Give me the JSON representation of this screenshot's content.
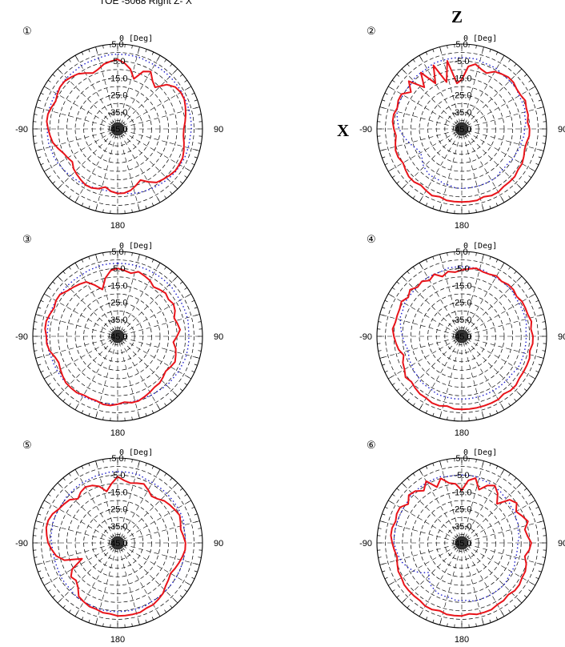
{
  "header": {
    "title": "TOE -5068 Right Z- X",
    "axis_z": "Z",
    "axis_x": "X"
  },
  "chart_data": {
    "type": "polar-line",
    "unit_angle": "[Deg]",
    "angle_labels": {
      "top": "0",
      "right": "90",
      "bottom": "180",
      "left": "-90"
    },
    "radial_ticks": [
      "5.0",
      "-5.0",
      "-15.0",
      "-25.0",
      "-35.0",
      "-45.0"
    ],
    "rlim": [
      -45,
      5
    ],
    "colors": {
      "series_red": "#e8141a",
      "series_blue": "#1c1ccc",
      "grid": "#000000"
    },
    "plots": [
      {
        "marker": "①",
        "series": [
          {
            "style": "solid-red",
            "values": [
              -4,
              -6,
              -9,
              -14,
              -8,
              -6,
              -10,
              -12,
              -6,
              -3,
              -2,
              -2,
              -3,
              -4,
              -5,
              -6,
              -6,
              -5,
              -4,
              -3,
              -3,
              -3,
              -4,
              -5,
              -6,
              -9,
              -12,
              -10,
              -8,
              -7,
              -7,
              -8,
              -10,
              -8,
              -7,
              -7,
              -8,
              -9,
              -10,
              -12,
              -11,
              -10,
              -8,
              -6,
              -5,
              -4,
              -3,
              -3,
              -4,
              -5,
              -4,
              -3,
              -3,
              -4,
              -5,
              -7,
              -9,
              -8,
              -6,
              -5
            ]
          },
          {
            "style": "dotted-blue",
            "values": [
              -1,
              -1,
              -1,
              -1,
              -1.5,
              -1.5,
              -1.5,
              -1.5,
              -1.5,
              -1.5,
              -1.5,
              -1.5,
              -1.5,
              -1.5,
              -1.5,
              -1.5,
              -2,
              -2,
              -2,
              -2,
              -2.5,
              -2.5,
              -3,
              -3.5,
              -4,
              -4.5,
              -5,
              -5.5,
              -6,
              -7,
              -7.5,
              -8,
              -8,
              -8,
              -7.5,
              -7,
              -6.5,
              -6,
              -5.5,
              -5,
              -4.5,
              -4,
              -4,
              -3.5,
              -3.5,
              -3.5,
              -3,
              -3,
              -3,
              -3,
              -3,
              -3,
              -2.5,
              -2.5,
              -2.5,
              -2,
              -2,
              -2,
              -1.5,
              -1
            ]
          }
        ]
      },
      {
        "marker": "②",
        "series": [
          {
            "style": "solid-red",
            "values": [
              -16,
              -8,
              -6,
              -8,
              -9,
              -6,
              -5,
              -4,
              -4,
              -5,
              -5,
              -4,
              -5,
              -5,
              -6,
              -5,
              -5,
              -6,
              -6,
              -5,
              -4,
              -4,
              -3,
              -3,
              -3,
              -2,
              -2,
              -3,
              -2,
              -2,
              -2,
              -2,
              -2,
              -3,
              -2,
              -3,
              -4,
              -3,
              -3,
              -4,
              -5,
              -4,
              -4,
              -5,
              -6,
              -5,
              -4,
              -4,
              -5,
              -4,
              -4,
              -8,
              -3,
              -12,
              -4,
              -14,
              -4,
              -16,
              -4,
              -18
            ]
          },
          {
            "style": "dotted-blue",
            "values": [
              -3,
              -3,
              -3,
              -4,
              -4,
              -4,
              -5,
              -5,
              -5,
              -5,
              -6,
              -6,
              -6,
              -7,
              -7,
              -8,
              -8,
              -9,
              -9,
              -10,
              -10,
              -11,
              -11,
              -11,
              -10,
              -10,
              -10,
              -10,
              -10,
              -10,
              -10,
              -10,
              -11,
              -11,
              -12,
              -12,
              -12,
              -13,
              -14,
              -16,
              -17,
              -16,
              -14,
              -12,
              -10,
              -8,
              -7,
              -6,
              -5,
              -5,
              -5,
              -5,
              -5,
              -4,
              -4,
              -4,
              -3,
              -3,
              -3,
              -3
            ]
          }
        ]
      },
      {
        "marker": "③",
        "series": [
          {
            "style": "solid-red",
            "values": [
              -5,
              -6,
              -7,
              -5,
              -6,
              -7,
              -9,
              -8,
              -7,
              -8,
              -7,
              -8,
              -10,
              -9,
              -8,
              -10,
              -12,
              -10,
              -9,
              -8,
              -9,
              -10,
              -9,
              -8,
              -8,
              -7,
              -6,
              -5,
              -5,
              -6,
              -5,
              -4,
              -4,
              -5,
              -5,
              -5,
              -4,
              -4,
              -4,
              -5,
              -6,
              -7,
              -6,
              -4,
              -3,
              -3,
              -2,
              -2,
              -3,
              -4,
              -3,
              -3,
              -5,
              -6,
              -7,
              -8,
              -12,
              -16,
              -10,
              -6
            ]
          },
          {
            "style": "dotted-blue",
            "values": [
              -2,
              -2,
              -2,
              -2,
              -2,
              -2,
              -2,
              -2,
              -2,
              -2.5,
              -2.5,
              -2.5,
              -2.5,
              -2.5,
              -3,
              -3,
              -3,
              -3,
              -3,
              -3.5,
              -3.5,
              -4,
              -4,
              -4.5,
              -5,
              -5,
              -5.5,
              -5.5,
              -5.5,
              -5.5,
              -5,
              -5,
              -4.5,
              -4.5,
              -4.5,
              -4,
              -4,
              -4,
              -4,
              -4,
              -4,
              -4,
              -4,
              -3.5,
              -3.5,
              -3.5,
              -3.5,
              -3.5,
              -3,
              -3,
              -3,
              -3,
              -3,
              -3,
              -3,
              -3,
              -2.5,
              -2.5,
              -2,
              -2
            ]
          }
        ]
      },
      {
        "marker": "④",
        "series": [
          {
            "style": "solid-red",
            "values": [
              -6,
              -5,
              -4,
              -5,
              -5,
              -4,
              -5,
              -4,
              -4,
              -5,
              -4,
              -4,
              -4,
              -3,
              -4,
              -3,
              -3,
              -4,
              -3,
              -3,
              -3,
              -3,
              -2,
              -2,
              -3,
              -2,
              -2,
              -2,
              -2,
              -2,
              -2,
              -2,
              -3,
              -2,
              -2,
              -3,
              -3,
              -4,
              -5,
              -4,
              -6,
              -7,
              -9,
              -7,
              -6,
              -5,
              -4,
              -5,
              -5,
              -5,
              -4,
              -6,
              -4,
              -6,
              -5,
              -7,
              -5,
              -8,
              -6,
              -7
            ]
          },
          {
            "style": "dotted-blue",
            "values": [
              -4,
              -4,
              -4,
              -4,
              -5,
              -5,
              -5,
              -5,
              -5,
              -6,
              -6,
              -6,
              -6,
              -6,
              -7,
              -7,
              -7,
              -7,
              -7,
              -7,
              -7,
              -8,
              -8,
              -8,
              -8,
              -8,
              -8,
              -8,
              -8,
              -8,
              -8,
              -8,
              -8,
              -8,
              -8,
              -9,
              -9,
              -9,
              -10,
              -10,
              -11,
              -11,
              -12,
              -12,
              -11,
              -10,
              -9,
              -8,
              -7,
              -7,
              -6,
              -6,
              -6,
              -6,
              -5,
              -5,
              -5,
              -5,
              -4,
              -4
            ]
          }
        ]
      },
      {
        "marker": "⑤",
        "series": [
          {
            "style": "solid-red",
            "values": [
              -6,
              -8,
              -9,
              -8,
              -7,
              -9,
              -11,
              -10,
              -8,
              -7,
              -6,
              -5,
              -6,
              -7,
              -6,
              -5,
              -5,
              -6,
              -7,
              -8,
              -9,
              -8,
              -7,
              -5,
              -4,
              -3,
              -3,
              -2,
              -2,
              -2,
              -2,
              -3,
              -3,
              -4,
              -4,
              -5,
              -6,
              -10,
              -12,
              -11,
              -14,
              -22,
              -12,
              -8,
              -6,
              -4,
              -3,
              -2,
              -2,
              -3,
              -5,
              -6,
              -7,
              -10,
              -8,
              -7,
              -8,
              -10,
              -14,
              -10
            ]
          },
          {
            "style": "dotted-blue",
            "values": [
              -3,
              -3,
              -3,
              -3,
              -4,
              -4,
              -4,
              -4,
              -4,
              -4,
              -4,
              -4,
              -4,
              -5,
              -5,
              -5,
              -5,
              -5,
              -5,
              -5,
              -5,
              -5,
              -5,
              -5,
              -5,
              -5,
              -4.5,
              -4.5,
              -4.5,
              -4.5,
              -4.5,
              -4.5,
              -4.5,
              -4.5,
              -5,
              -5,
              -5,
              -5.5,
              -6,
              -6,
              -6,
              -6.5,
              -6.5,
              -6.5,
              -6.5,
              -6,
              -5.5,
              -5.5,
              -5,
              -5,
              -5,
              -5,
              -4.5,
              -4.5,
              -4,
              -4,
              -4,
              -3.5,
              -3.5,
              -3
            ]
          }
        ]
      },
      {
        "marker": "⑥",
        "series": [
          {
            "style": "solid-red",
            "values": [
              -14,
              -8,
              -6,
              -12,
              -8,
              -6,
              -9,
              -14,
              -7,
              -5,
              -8,
              -6,
              -4,
              -7,
              -6,
              -4,
              -5,
              -7,
              -5,
              -4,
              -4,
              -3,
              -3,
              -4,
              -3,
              -3,
              -2,
              -2,
              -2,
              -3,
              -2,
              -2,
              -2,
              -3,
              -2,
              -2,
              -3,
              -3,
              -3,
              -3,
              -4,
              -4,
              -5,
              -6,
              -5,
              -4,
              -3,
              -3,
              -4,
              -3,
              -3,
              -6,
              -3,
              -4,
              -7,
              -3,
              -9,
              -5,
              -9,
              -10
            ]
          },
          {
            "style": "dotted-blue",
            "values": [
              -5,
              -5,
              -5,
              -6,
              -6,
              -7,
              -7,
              -8,
              -8,
              -9,
              -9,
              -10,
              -10,
              -11,
              -11,
              -12,
              -12,
              -12,
              -12,
              -11,
              -11,
              -11,
              -10,
              -10,
              -10,
              -10,
              -10,
              -10,
              -10,
              -11,
              -11,
              -11,
              -12,
              -12,
              -12,
              -13,
              -14,
              -16,
              -19,
              -15,
              -12,
              -10,
              -8,
              -7,
              -6,
              -5,
              -5,
              -5,
              -5,
              -5,
              -5,
              -5,
              -4,
              -4,
              -4,
              -4,
              -4,
              -4,
              -5,
              -5
            ]
          }
        ]
      }
    ]
  }
}
